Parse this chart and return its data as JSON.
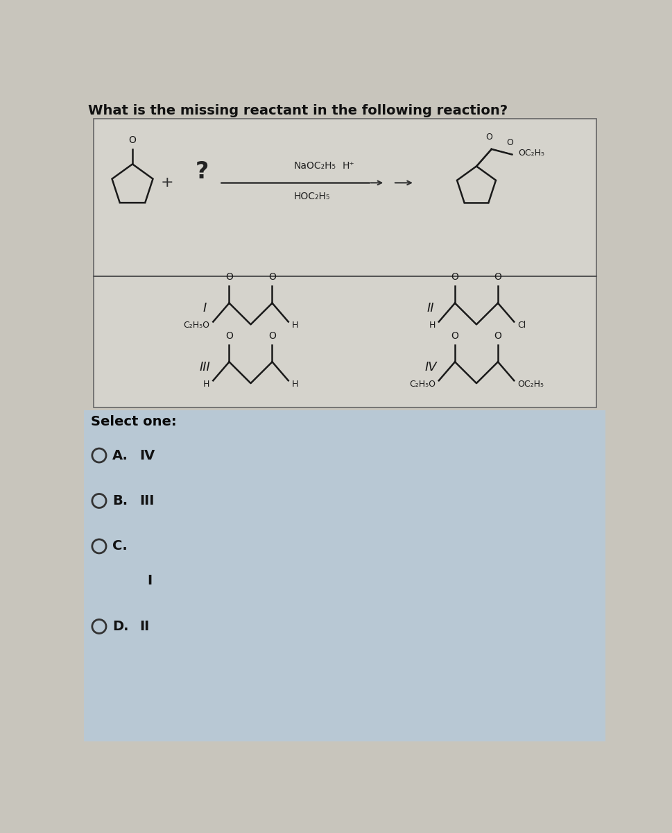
{
  "title": "What is the missing reactant in the following reaction?",
  "title_fontsize": 14,
  "title_color": "#111111",
  "bg_overall": "#c8c5bc",
  "bg_answer": "#b8c8d4",
  "inner_box_color": "#d5d3cc",
  "select_one_text": "Select one:",
  "options": [
    {
      "label": "A.",
      "text": "IV"
    },
    {
      "label": "B.",
      "text": "III"
    },
    {
      "label": "C.",
      "text": "I",
      "newline": true
    },
    {
      "label": "D.",
      "text": "II"
    }
  ],
  "question_mark": "?"
}
